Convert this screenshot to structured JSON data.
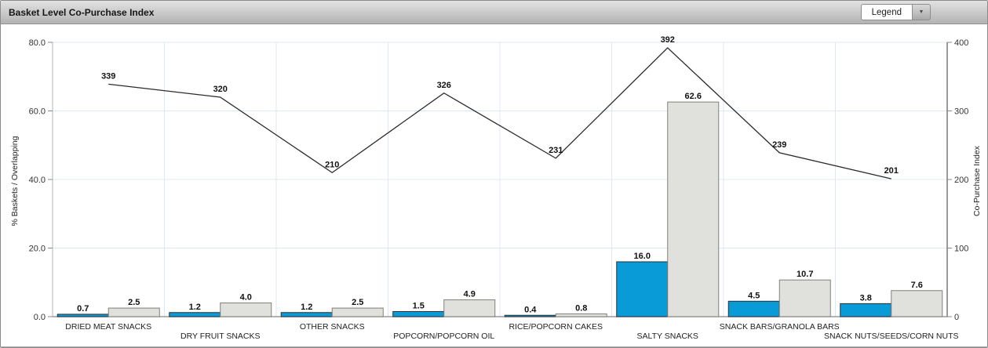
{
  "header": {
    "title": "Basket Level Co-Purchase Index",
    "legend_label": "Legend"
  },
  "chart_data": {
    "type": "bar+line",
    "categories": [
      "DRIED MEAT SNACKS",
      "DRY FRUIT SNACKS",
      "OTHER SNACKS",
      "POPCORN/POPCORN OIL",
      "RICE/POPCORN CAKES",
      "SALTY SNACKS",
      "SNACK BARS/GRANOLA BARS",
      "SNACK NUTS/SEEDS/CORN NUTS"
    ],
    "series": [
      {
        "name": "blue-bars",
        "type": "bar",
        "axis": "left",
        "color": "#089bd8",
        "border": "#2f2f2f",
        "values": [
          0.7,
          1.2,
          1.2,
          1.5,
          0.4,
          16.0,
          4.5,
          3.8
        ]
      },
      {
        "name": "gray-bars",
        "type": "bar",
        "axis": "left",
        "color": "#e0e0dc",
        "border": "#80807a",
        "values": [
          2.5,
          4.0,
          2.5,
          4.9,
          0.8,
          62.6,
          10.7,
          7.6
        ]
      },
      {
        "name": "index-line",
        "type": "line",
        "axis": "right",
        "color": "#2b2b2b",
        "values": [
          339,
          320,
          210,
          326,
          231,
          392,
          239,
          201
        ]
      }
    ],
    "left_axis": {
      "label": "% Baskets / Overlapping",
      "min": 0,
      "max": 80,
      "tick_values": [
        0,
        20,
        40,
        60,
        80
      ],
      "tick_labels": [
        "0.0",
        "20.0",
        "40.0",
        "60.0",
        "80.0"
      ]
    },
    "right_axis": {
      "label": "Co-Purchase Index",
      "min": 0,
      "max": 400,
      "tick_values": [
        0,
        100,
        200,
        300,
        400
      ],
      "tick_labels": [
        "0",
        "100",
        "200",
        "300",
        "400"
      ]
    },
    "grid": true,
    "legend_position": "collapsed-dropdown",
    "colors": {
      "gridline": "#dce9f5",
      "left_axis_line": "#b4b4b4",
      "right_axis_line": "#9a9a9a",
      "baseline": "#9a9a9a",
      "tick_text": "#333333",
      "category_text": "#222222"
    }
  }
}
